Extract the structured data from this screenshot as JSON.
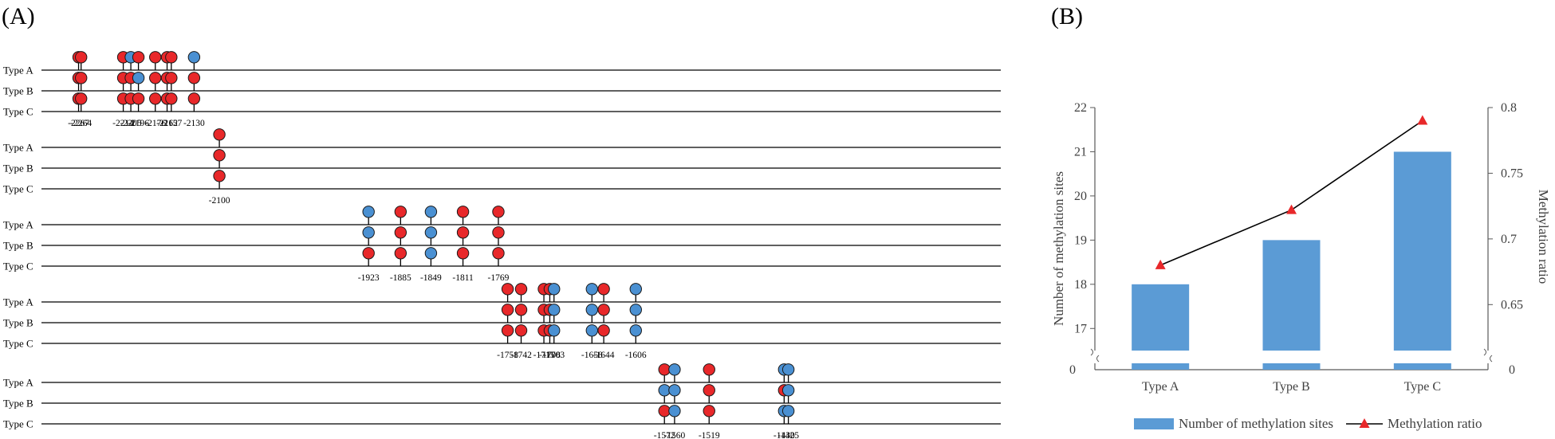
{
  "panel_a": {
    "label": "(A)",
    "row_labels": [
      "Type A",
      "Type B",
      "Type C"
    ],
    "x_domain": [
      -2294,
      -1173
    ],
    "colors": {
      "methylated": "#e8282a",
      "unmethylated": "#4a90d2"
    },
    "blocks": [
      {
        "sites": [
          {
            "pos": -2267,
            "label": "-2267",
            "status": [
              "M",
              "M",
              "M"
            ]
          },
          {
            "pos": -2264,
            "label": "-2264",
            "status": [
              "M",
              "M",
              "M"
            ]
          },
          {
            "pos": -2214,
            "label": "-2214",
            "status": [
              "M",
              "M",
              "M"
            ]
          },
          {
            "pos": -2205,
            "label": "-2205",
            "status": [
              "U",
              "M",
              "M"
            ]
          },
          {
            "pos": -2196,
            "label": "-2196",
            "status": [
              "M",
              "U",
              "M"
            ]
          },
          {
            "pos": -2176,
            "label": "-2176",
            "status": [
              "M",
              "M",
              "M"
            ]
          },
          {
            "pos": -2162,
            "label": "-2162",
            "status": [
              "M",
              "M",
              "M"
            ]
          },
          {
            "pos": -2157,
            "label": "-2157",
            "status": [
              "M",
              "M",
              "M"
            ]
          },
          {
            "pos": -2130,
            "label": "-2130",
            "status": [
              "U",
              "M",
              "M"
            ]
          }
        ]
      },
      {
        "sites": [
          {
            "pos": -2100,
            "label": "-2100",
            "status": [
              "M",
              "M",
              "M"
            ]
          }
        ]
      },
      {
        "sites": [
          {
            "pos": -1923,
            "label": "-1923",
            "status": [
              "U",
              "U",
              "M"
            ]
          },
          {
            "pos": -1885,
            "label": "-1885",
            "status": [
              "M",
              "M",
              "M"
            ]
          },
          {
            "pos": -1849,
            "label": "-1849",
            "status": [
              "U",
              "U",
              "U"
            ]
          },
          {
            "pos": -1811,
            "label": "-1811",
            "status": [
              "M",
              "M",
              "M"
            ]
          },
          {
            "pos": -1769,
            "label": "-1769",
            "status": [
              "M",
              "M",
              "M"
            ]
          }
        ]
      },
      {
        "sites": [
          {
            "pos": -1758,
            "label": "-1758",
            "status": [
              "M",
              "M",
              "M"
            ]
          },
          {
            "pos": -1742,
            "label": "-1742",
            "status": [
              "M",
              "M",
              "M"
            ]
          },
          {
            "pos": -1715,
            "label": "-1715",
            "status": [
              "M",
              "M",
              "M"
            ]
          },
          {
            "pos": -1708,
            "label": "-1708",
            "status": [
              "M",
              "M",
              "M"
            ]
          },
          {
            "pos": -1703,
            "label": "-1703",
            "status": [
              "U",
              "U",
              "U"
            ]
          },
          {
            "pos": -1658,
            "label": "-1658",
            "status": [
              "U",
              "U",
              "U"
            ]
          },
          {
            "pos": -1644,
            "label": "-1644",
            "status": [
              "M",
              "M",
              "M"
            ]
          },
          {
            "pos": -1606,
            "label": "-1606",
            "status": [
              "U",
              "U",
              "U"
            ]
          }
        ]
      },
      {
        "sites": [
          {
            "pos": -1572,
            "label": "-1572",
            "status": [
              "M",
              "U",
              "M"
            ]
          },
          {
            "pos": -1560,
            "label": "-1560",
            "status": [
              "U",
              "U",
              "U"
            ]
          },
          {
            "pos": -1519,
            "label": "-1519",
            "status": [
              "M",
              "M",
              "M"
            ]
          },
          {
            "pos": -1430,
            "label": "-1430",
            "status": [
              "U",
              "M",
              "U"
            ]
          },
          {
            "pos": -1425,
            "label": "-1425",
            "status": [
              "U",
              "U",
              "U"
            ]
          }
        ]
      }
    ]
  },
  "panel_b": {
    "label": "(B)",
    "colors": {
      "bar": "#5b9bd5",
      "line": "#000000",
      "marker": "#e8282a"
    },
    "chart_data": {
      "type": "bar",
      "categories": [
        "Type A",
        "Type B",
        "Type C"
      ],
      "series": [
        {
          "name": "Number of methylation sites",
          "axis": "left",
          "values": [
            18,
            19,
            21
          ]
        },
        {
          "name": "Methylation ratio",
          "axis": "right",
          "kind": "line",
          "values": [
            0.68,
            0.722,
            0.79
          ]
        }
      ],
      "ylabel": "Number of methylation sites",
      "y2label": "Methylation ratio",
      "ylim": [
        16.5,
        22
      ],
      "y2lim": [
        0.615,
        0.8
      ],
      "yticks": [
        "17",
        "18",
        "19",
        "20",
        "21",
        "22"
      ],
      "y2ticks": [
        "0.65",
        "0.7",
        "0.75",
        "0.8"
      ],
      "axis_break_label": "0",
      "legend_position": "bottom"
    }
  }
}
